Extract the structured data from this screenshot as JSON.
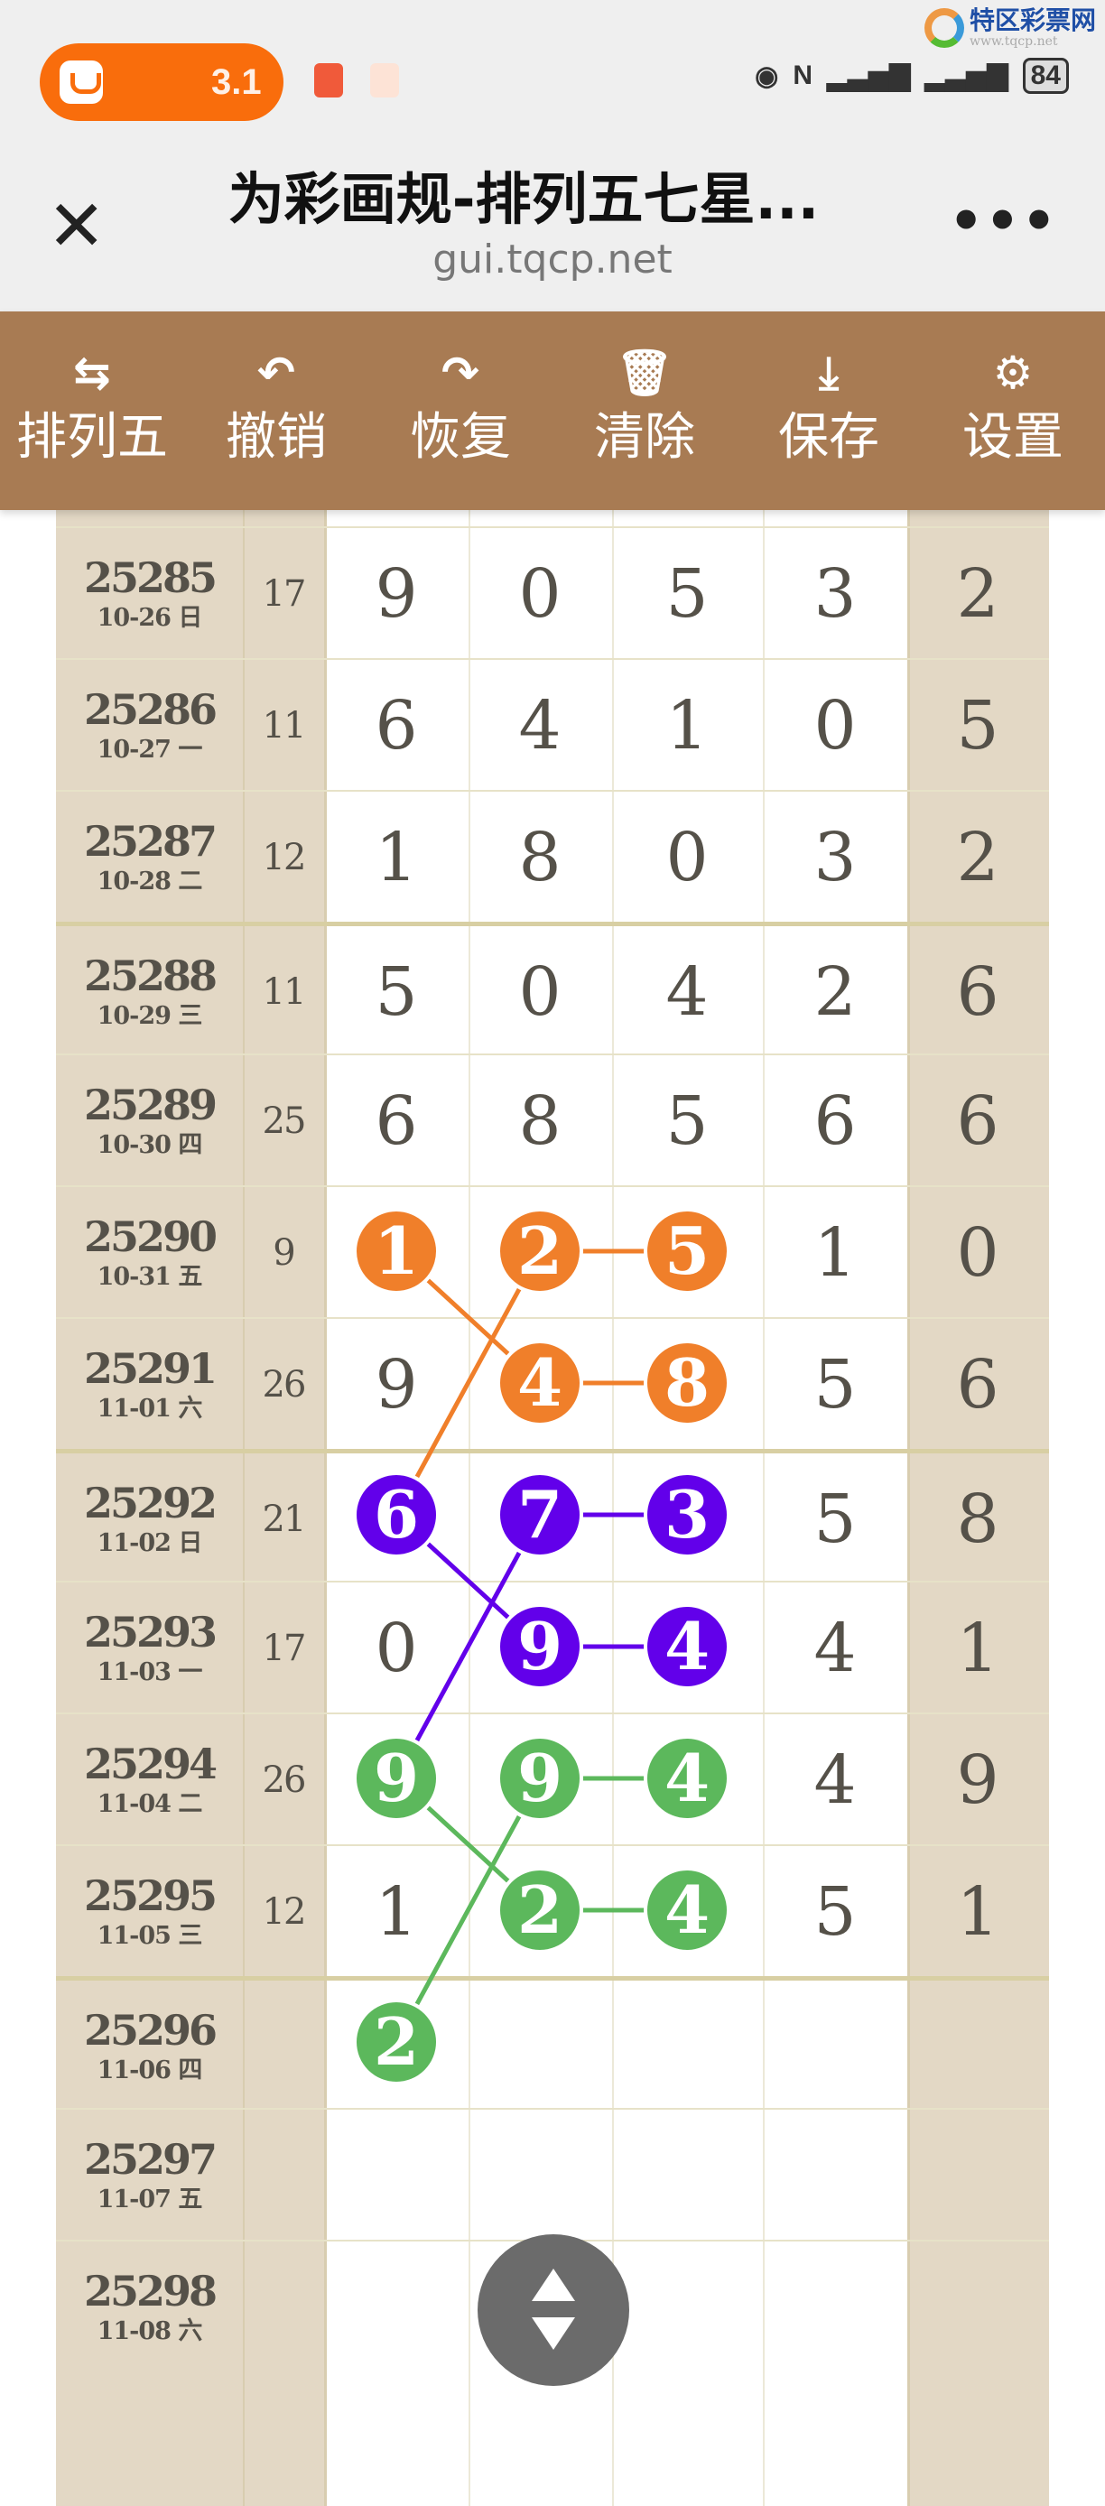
{
  "status_bar": {
    "pill_value": "3.1",
    "battery": "84",
    "watermark": {
      "name": "特区彩票网",
      "url": "www.tqcp.net"
    }
  },
  "title_bar": {
    "title": "为彩画规-排列五七星...",
    "url": "gui.tqcp.net",
    "close_icon": "close-icon",
    "more_icon": "more-icon"
  },
  "toolbar": [
    {
      "label": "排列五",
      "icon": "swap-icon",
      "glyph": "⇆"
    },
    {
      "label": "撤销",
      "icon": "undo-icon",
      "glyph": "↶"
    },
    {
      "label": "恢复",
      "icon": "redo-icon",
      "glyph": "↷"
    },
    {
      "label": "清除",
      "icon": "trash-icon",
      "glyph": "🗑"
    },
    {
      "label": "保存",
      "icon": "download-icon",
      "glyph": "⤓"
    },
    {
      "label": "设置",
      "icon": "gear-icon",
      "glyph": "⚙"
    }
  ],
  "colors": {
    "toolbar": "#a87b53",
    "side": "#e3d8c5",
    "orange": "#f07f2a",
    "purple": "#6200ea",
    "green": "#5cb85c",
    "text": "#555149"
  },
  "rows": [
    {
      "issue": "25285",
      "date": "10-26 日",
      "sum": "17",
      "digits": [
        "9",
        "0",
        "5",
        "3",
        "2"
      ]
    },
    {
      "issue": "25286",
      "date": "10-27 一",
      "sum": "11",
      "digits": [
        "6",
        "4",
        "1",
        "0",
        "5"
      ]
    },
    {
      "issue": "25287",
      "date": "10-28 二",
      "sum": "12",
      "digits": [
        "1",
        "8",
        "0",
        "3",
        "2"
      ]
    },
    {
      "issue": "25288",
      "date": "10-29 三",
      "sum": "11",
      "digits": [
        "5",
        "0",
        "4",
        "2",
        "6"
      ]
    },
    {
      "issue": "25289",
      "date": "10-30 四",
      "sum": "25",
      "digits": [
        "6",
        "8",
        "5",
        "6",
        "6"
      ]
    },
    {
      "issue": "25290",
      "date": "10-31 五",
      "sum": "9",
      "digits": [
        "1",
        "2",
        "5",
        "1",
        "0"
      ]
    },
    {
      "issue": "25291",
      "date": "11-01 六",
      "sum": "26",
      "digits": [
        "9",
        "4",
        "8",
        "5",
        "6"
      ]
    },
    {
      "issue": "25292",
      "date": "11-02 日",
      "sum": "21",
      "digits": [
        "6",
        "7",
        "3",
        "5",
        "8"
      ]
    },
    {
      "issue": "25293",
      "date": "11-03 一",
      "sum": "17",
      "digits": [
        "0",
        "9",
        "4",
        "4",
        "1"
      ]
    },
    {
      "issue": "25294",
      "date": "11-04 二",
      "sum": "26",
      "digits": [
        "9",
        "9",
        "4",
        "4",
        "9"
      ]
    },
    {
      "issue": "25295",
      "date": "11-05 三",
      "sum": "12",
      "digits": [
        "1",
        "2",
        "4",
        "5",
        "1"
      ]
    },
    {
      "issue": "25296",
      "date": "11-06 四",
      "sum": "",
      "digits": [
        "2",
        "",
        "",
        "",
        ""
      ]
    },
    {
      "issue": "25297",
      "date": "11-07 五",
      "sum": "",
      "digits": [
        "",
        "",
        "",
        "",
        ""
      ]
    },
    {
      "issue": "25298",
      "date": "11-08 六",
      "sum": "",
      "digits": [
        "",
        "",
        "",
        "",
        ""
      ]
    }
  ],
  "marks": [
    {
      "row": 5,
      "col": 0,
      "color": "orange"
    },
    {
      "row": 5,
      "col": 1,
      "color": "orange"
    },
    {
      "row": 5,
      "col": 2,
      "color": "orange"
    },
    {
      "row": 6,
      "col": 1,
      "color": "orange"
    },
    {
      "row": 6,
      "col": 2,
      "color": "orange"
    },
    {
      "row": 7,
      "col": 0,
      "color": "purple"
    },
    {
      "row": 7,
      "col": 1,
      "color": "purple"
    },
    {
      "row": 7,
      "col": 2,
      "color": "purple"
    },
    {
      "row": 8,
      "col": 1,
      "color": "purple"
    },
    {
      "row": 8,
      "col": 2,
      "color": "purple"
    },
    {
      "row": 9,
      "col": 0,
      "color": "green"
    },
    {
      "row": 9,
      "col": 1,
      "color": "green"
    },
    {
      "row": 9,
      "col": 2,
      "color": "green"
    },
    {
      "row": 10,
      "col": 1,
      "color": "green"
    },
    {
      "row": 10,
      "col": 2,
      "color": "green"
    },
    {
      "row": 11,
      "col": 0,
      "color": "green"
    }
  ],
  "links": [
    {
      "from": [
        5,
        0
      ],
      "to": [
        6,
        1
      ],
      "color": "orange"
    },
    {
      "from": [
        5,
        1
      ],
      "to": [
        7,
        0
      ],
      "color": "orange"
    },
    {
      "from": [
        5,
        1
      ],
      "to": [
        5,
        2
      ],
      "color": "orange"
    },
    {
      "from": [
        6,
        1
      ],
      "to": [
        6,
        2
      ],
      "color": "orange"
    },
    {
      "from": [
        7,
        0
      ],
      "to": [
        8,
        1
      ],
      "color": "purple"
    },
    {
      "from": [
        7,
        1
      ],
      "to": [
        9,
        0
      ],
      "color": "purple"
    },
    {
      "from": [
        7,
        1
      ],
      "to": [
        7,
        2
      ],
      "color": "purple"
    },
    {
      "from": [
        8,
        1
      ],
      "to": [
        8,
        2
      ],
      "color": "purple"
    },
    {
      "from": [
        9,
        0
      ],
      "to": [
        10,
        1
      ],
      "color": "green"
    },
    {
      "from": [
        9,
        1
      ],
      "to": [
        11,
        0
      ],
      "color": "green"
    },
    {
      "from": [
        9,
        1
      ],
      "to": [
        9,
        2
      ],
      "color": "green"
    },
    {
      "from": [
        10,
        1
      ],
      "to": [
        10,
        2
      ],
      "color": "green"
    }
  ],
  "group_separators_after": [
    "25287",
    "25291",
    "25295"
  ],
  "scroll_button_icon": "scroll-up-down-icon"
}
